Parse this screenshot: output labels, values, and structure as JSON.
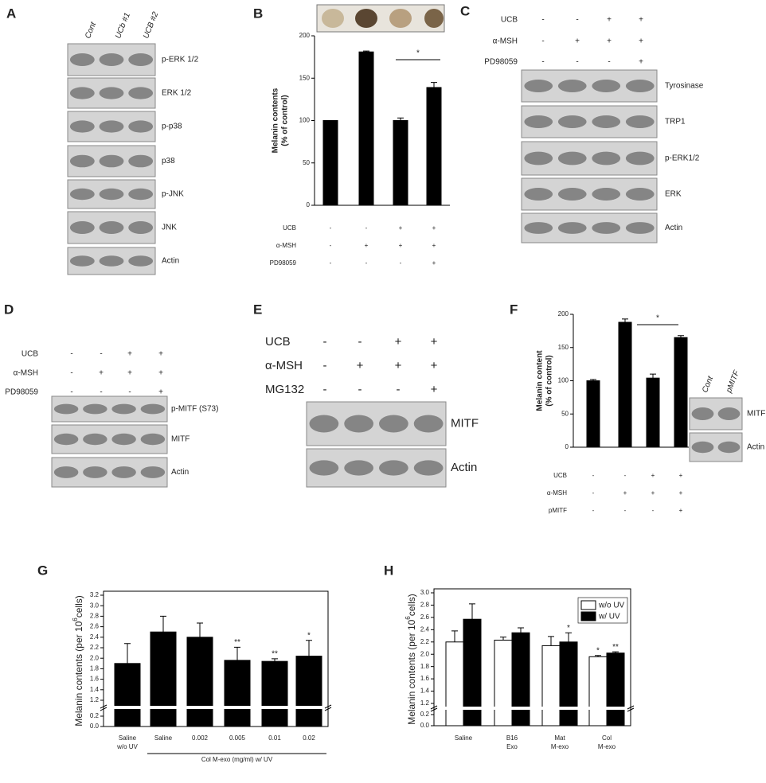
{
  "panel_labels": [
    "A",
    "B",
    "C",
    "D",
    "E",
    "F",
    "G",
    "H"
  ],
  "blots": [
    {
      "lanes": [
        "Cont",
        "UCb #1",
        "UCB #2"
      ],
      "bands": [
        "p-ERK 1/2",
        "ERK 1/2",
        "p-p38",
        "p38",
        "p-JNK",
        "JNK",
        "Actin"
      ]
    },
    {
      "treatments": [
        {
          "name": "UCB",
          "signs": [
            "-",
            "-",
            "+",
            "+"
          ]
        },
        {
          "name": "α-MSH",
          "signs": [
            "-",
            "+",
            "+",
            "+"
          ]
        },
        {
          "name": "PD98059",
          "signs": [
            "-",
            "-",
            "-",
            "+"
          ]
        }
      ],
      "bands": [
        "Tyrosinase",
        "TRP1",
        "p-ERK1/2",
        "ERK",
        "Actin"
      ]
    },
    {
      "treatments": [
        {
          "name": "UCB",
          "signs": [
            "-",
            "-",
            "+",
            "+"
          ]
        },
        {
          "name": "α-MSH",
          "signs": [
            "-",
            "+",
            "+",
            "+"
          ]
        },
        {
          "name": "PD98059",
          "signs": [
            "-",
            "-",
            "-",
            "+"
          ]
        }
      ],
      "bands": [
        "p-MITF (S73)",
        "MITF",
        "Actin"
      ]
    },
    {
      "treatments": [
        {
          "name": "UCB",
          "signs": [
            "-",
            "-",
            "+",
            "+"
          ]
        },
        {
          "name": "α-MSH",
          "signs": [
            "-",
            "+",
            "+",
            "+"
          ]
        },
        {
          "name": "MG132",
          "signs": [
            "-",
            "-",
            "-",
            "+"
          ]
        }
      ],
      "bands": [
        "MITF",
        "Actin"
      ]
    },
    {
      "lanes": [
        "Cont",
        "pMITF"
      ],
      "bands": [
        "MITF",
        "Actin"
      ]
    }
  ],
  "chart_data": [
    {
      "type": "bar",
      "ylabel": [
        "Melanin contents",
        "(% of control)"
      ],
      "values": [
        100,
        181,
        100,
        139
      ],
      "errors": [
        0,
        1,
        3,
        6
      ],
      "color": "#000000",
      "ylim": [
        0,
        200
      ],
      "yticks": [
        0,
        50,
        100,
        150,
        200
      ],
      "annotation": "*",
      "treatments": [
        {
          "name": "UCB",
          "signs": [
            "-",
            "-",
            "+",
            "+"
          ]
        },
        {
          "name": "α-MSH",
          "signs": [
            "-",
            "+",
            "+",
            "+"
          ]
        },
        {
          "name": "PD98059",
          "signs": [
            "-",
            "-",
            "-",
            "+"
          ]
        }
      ]
    },
    {
      "type": "bar",
      "ylabel": [
        "Melanin content",
        "(% of control)"
      ],
      "values": [
        100,
        188,
        104,
        165
      ],
      "errors": [
        2,
        5,
        6,
        3
      ],
      "color": "#000000",
      "ylim": [
        0,
        200
      ],
      "yticks": [
        0,
        50,
        100,
        150,
        200
      ],
      "annotation": "*",
      "treatments": [
        {
          "name": "UCB",
          "signs": [
            "-",
            "-",
            "+",
            "+"
          ]
        },
        {
          "name": "α-MSH",
          "signs": [
            "-",
            "+",
            "+",
            "+"
          ]
        },
        {
          "name": "pMITF",
          "signs": [
            "-",
            "-",
            "-",
            "+"
          ]
        }
      ]
    },
    {
      "type": "bar",
      "ylabel": [
        "Melanin contents (per 10",
        "6",
        "cells)"
      ],
      "categories": [
        [
          "Saline",
          "w/o UV"
        ],
        [
          "Saline"
        ],
        [
          "0.002"
        ],
        [
          "0.005"
        ],
        [
          "0.01"
        ],
        [
          "0.02"
        ]
      ],
      "xlabel": "Col M-exo (mg/ml) w/ UV",
      "values": [
        1.9,
        2.5,
        2.4,
        1.96,
        1.94,
        2.04
      ],
      "errors": [
        0.38,
        0.3,
        0.27,
        0.25,
        0.05,
        0.3
      ],
      "significance": [
        null,
        null,
        null,
        "**",
        "**",
        "*"
      ],
      "color": "#000000",
      "ylim": [
        0,
        3.2
      ],
      "ybreak": [
        0.2,
        1.2
      ],
      "frame": true,
      "yticks": [
        {
          "value": 0,
          "label": "0.0"
        },
        0.2,
        1.2,
        1.4,
        1.6,
        1.8,
        {
          "value": 2,
          "label": "2.0"
        },
        2.2,
        2.4,
        2.6,
        2.8,
        {
          "value": 3,
          "label": "3.0"
        },
        3.2
      ]
    },
    {
      "type": "bar",
      "ylabel": [
        "Melanin contents (per 10",
        "6",
        "cells)"
      ],
      "categories": [
        [
          "Saline"
        ],
        [
          "B16",
          "Exo"
        ],
        [
          "Mat",
          "M-exo"
        ],
        [
          "Col",
          "M-exo"
        ]
      ],
      "series": [
        {
          "name": "w/o UV",
          "color": "#ffffff",
          "values": [
            2.2,
            2.23,
            2.14,
            1.96
          ],
          "errors": [
            0.18,
            0.05,
            0.15,
            0.02
          ],
          "significance": [
            null,
            null,
            null,
            "*"
          ]
        },
        {
          "name": "w/ UV",
          "color": "#000000",
          "values": [
            2.57,
            2.35,
            2.2,
            2.02
          ],
          "errors": [
            0.25,
            0.08,
            0.15,
            0.02
          ],
          "significance": [
            null,
            null,
            "*",
            "**"
          ]
        }
      ],
      "ylim": [
        0,
        3.0
      ],
      "ybreak": [
        0.2,
        1.2
      ],
      "frame": true,
      "legend": "top-right",
      "yticks": [
        {
          "value": 0,
          "label": "0.0"
        },
        0.2,
        1.2,
        1.4,
        1.6,
        1.8,
        {
          "value": 2,
          "label": "2.0"
        },
        2.2,
        2.4,
        2.6,
        2.8,
        {
          "value": 3,
          "label": "3.0"
        }
      ]
    }
  ]
}
